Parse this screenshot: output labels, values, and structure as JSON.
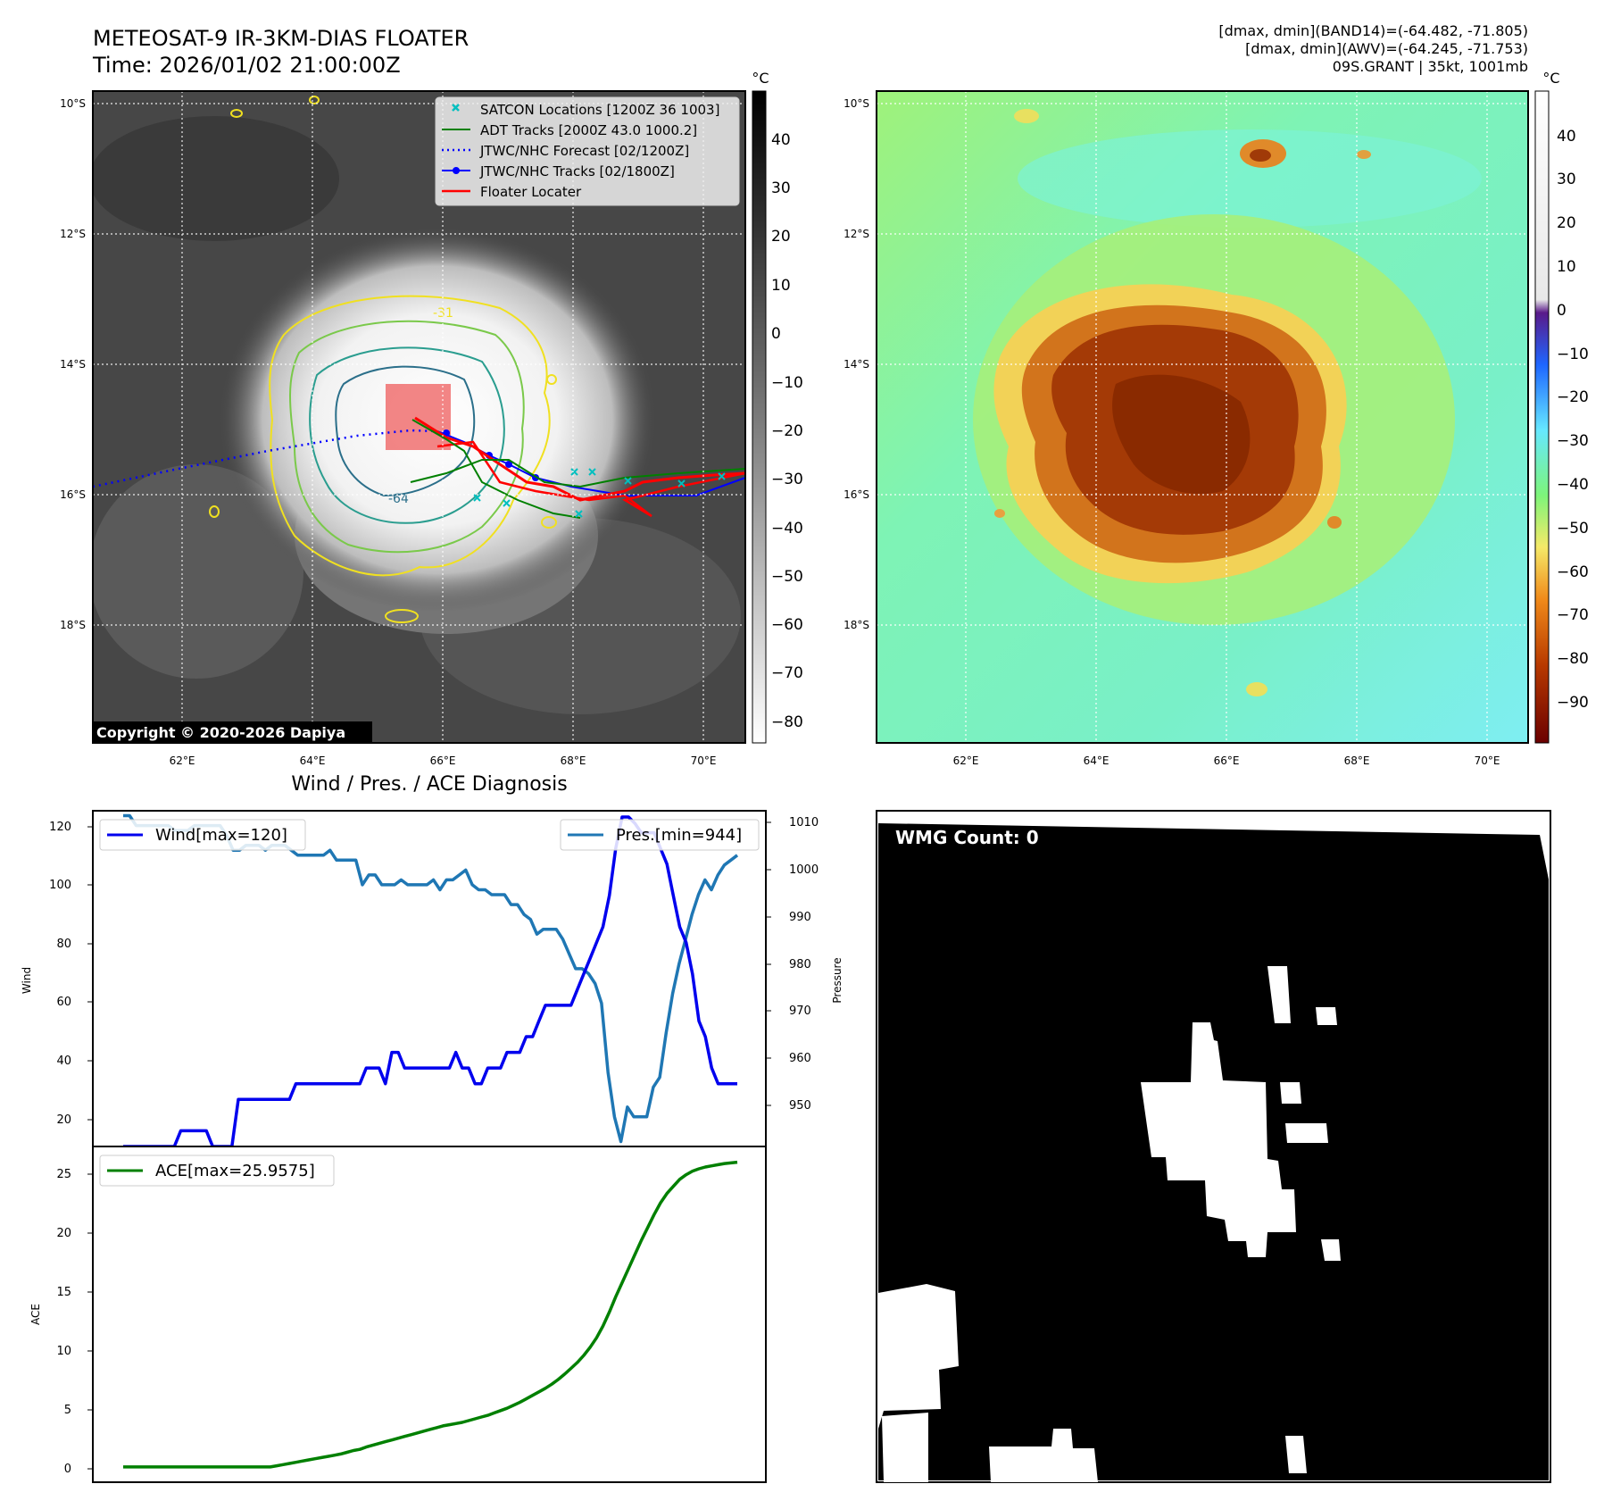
{
  "header": {
    "title_line1": "METEOSAT-9 IR-3KM-DIAS FLOATER",
    "title_line2": "Time: 2026/01/02 21:00:00Z",
    "stats_line1": "[dmax, dmin](BAND14)=(-64.482, -71.805)",
    "stats_line2": "[dmax, dmin](AWV)=(-64.245, -71.753)",
    "stats_line3": "09S.GRANT | 35kt, 1001mb"
  },
  "ir_map": {
    "lat_labels": [
      "10°S",
      "12°S",
      "14°S",
      "16°S",
      "18°S"
    ],
    "lon_labels": [
      "62°E",
      "64°E",
      "66°E",
      "68°E",
      "70°E"
    ],
    "copyright": "Copyright © 2020-2026 Dapiya",
    "contour_labels": [
      "-31",
      "-64"
    ],
    "legend": [
      {
        "label": "SATCON Locations [1200Z 36 1003]",
        "color": "#00bfbf",
        "style": "x"
      },
      {
        "label": "ADT Tracks [2000Z 43.0 1000.2]",
        "color": "#008000",
        "style": "line"
      },
      {
        "label": "JTWC/NHC Forecast [02/1200Z]",
        "color": "#0000ff",
        "style": "dotted"
      },
      {
        "label": "JTWC/NHC Tracks [02/1800Z]",
        "color": "#0000ff",
        "style": "line-dot"
      },
      {
        "label": "Floater Locater",
        "color": "#ff0000",
        "style": "line"
      }
    ],
    "colorbar": {
      "unit": "°C",
      "ticks": [
        "40",
        "30",
        "20",
        "10",
        "0",
        "−10",
        "−20",
        "−30",
        "−40",
        "−50",
        "−60",
        "−70",
        "−80"
      ]
    }
  },
  "awv_map": {
    "lat_labels": [
      "10°S",
      "12°S",
      "14°S",
      "16°S",
      "18°S"
    ],
    "lon_labels": [
      "62°E",
      "64°E",
      "66°E",
      "68°E",
      "70°E"
    ],
    "colorbar": {
      "unit": "°C",
      "ticks": [
        "40",
        "30",
        "20",
        "10",
        "0",
        "−10",
        "−20",
        "−30",
        "−40",
        "−50",
        "−60",
        "−70",
        "−80",
        "−90"
      ]
    }
  },
  "diagnosis": {
    "title": "Wind / Pres. / ACE Diagnosis",
    "wind_ylabel": "Wind",
    "pres_ylabel": "Pressure",
    "ace_ylabel": "ACE",
    "wind_legend": "Wind[max=120]",
    "pres_legend": "Pres.[min=944]",
    "ace_legend": "ACE[max=25.9575]",
    "wind_ticks": [
      "120",
      "100",
      "80",
      "60",
      "40",
      "20"
    ],
    "pres_ticks": [
      "1010",
      "1000",
      "990",
      "980",
      "970",
      "960",
      "950"
    ],
    "ace_ticks": [
      "25",
      "20",
      "15",
      "10",
      "5",
      "0"
    ]
  },
  "wmg": {
    "count_label": "WMG Count: 0"
  },
  "chart_data": [
    {
      "type": "line",
      "title": "Wind / Pres. / ACE Diagnosis",
      "ylabel": "Wind",
      "ylim": [
        15,
        122
      ],
      "series": [
        {
          "name": "Wind[max=120]",
          "color": "#0000ee",
          "values": [
            15,
            15,
            15,
            15,
            15,
            15,
            15,
            15,
            15,
            20,
            20,
            20,
            20,
            20,
            15,
            15,
            15,
            15,
            30,
            30,
            30,
            30,
            30,
            30,
            30,
            30,
            30,
            35,
            35,
            35,
            35,
            35,
            35,
            35,
            35,
            35,
            35,
            35,
            40,
            40,
            40,
            35,
            45,
            45,
            40,
            40,
            40,
            40,
            40,
            40,
            40,
            40,
            45,
            40,
            40,
            35,
            35,
            40,
            40,
            40,
            45,
            45,
            45,
            50,
            50,
            55,
            60,
            60,
            60,
            60,
            60,
            65,
            70,
            75,
            80,
            85,
            95,
            110,
            120,
            120,
            118,
            115,
            115,
            115,
            110,
            105,
            95,
            85,
            80,
            70,
            55,
            50,
            40,
            35,
            35,
            35,
            35
          ]
        }
      ]
    },
    {
      "type": "line",
      "ylabel": "Pressure",
      "ylim": [
        943,
        1011
      ],
      "series": [
        {
          "name": "Pres.[min=944]",
          "color": "#1f77b4",
          "values": [
            1010,
            1010,
            1008,
            1008,
            1008,
            1008,
            1008,
            1008,
            1007,
            1007,
            1007,
            1008,
            1008,
            1008,
            1008,
            1008,
            1006,
            1003,
            1003,
            1004,
            1004,
            1004,
            1003,
            1004,
            1004,
            1004,
            1003,
            1002,
            1002,
            1002,
            1002,
            1002,
            1003,
            1001,
            1001,
            1001,
            1001,
            996,
            998,
            998,
            996,
            996,
            996,
            997,
            996,
            996,
            996,
            996,
            997,
            995,
            997,
            997,
            998,
            999,
            996,
            995,
            995,
            994,
            994,
            994,
            992,
            992,
            990,
            989,
            986,
            987,
            987,
            987,
            985,
            982,
            979,
            979,
            978,
            976,
            972,
            958,
            949,
            944,
            951,
            949,
            949,
            949,
            955,
            957,
            966,
            974,
            980,
            985,
            990,
            994,
            997,
            995,
            998,
            1000,
            1001,
            1002
          ]
        }
      ]
    },
    {
      "type": "line",
      "ylabel": "ACE",
      "ylim": [
        -1.3,
        27.3
      ],
      "series": [
        {
          "name": "ACE[max=25.9575]",
          "color": "#008000",
          "values": [
            0,
            0,
            0,
            0,
            0,
            0,
            0,
            0,
            0,
            0,
            0,
            0,
            0,
            0,
            0,
            0,
            0,
            0,
            0,
            0,
            0,
            0,
            0,
            0,
            0.1,
            0.2,
            0.3,
            0.4,
            0.5,
            0.6,
            0.7,
            0.8,
            0.9,
            1.0,
            1.1,
            1.25,
            1.4,
            1.5,
            1.7,
            1.85,
            2.0,
            2.15,
            2.3,
            2.45,
            2.6,
            2.75,
            2.9,
            3.05,
            3.2,
            3.35,
            3.5,
            3.6,
            3.7,
            3.8,
            3.95,
            4.1,
            4.25,
            4.4,
            4.6,
            4.8,
            5.0,
            5.25,
            5.5,
            5.8,
            6.1,
            6.4,
            6.7,
            7.05,
            7.45,
            7.9,
            8.4,
            8.9,
            9.5,
            10.2,
            11.0,
            12.0,
            13.2,
            14.5,
            15.7,
            16.9,
            18.1,
            19.3,
            20.4,
            21.5,
            22.5,
            23.3,
            23.9,
            24.5,
            24.9,
            25.2,
            25.4,
            25.55,
            25.65,
            25.75,
            25.85,
            25.9,
            25.9575
          ]
        }
      ]
    }
  ]
}
